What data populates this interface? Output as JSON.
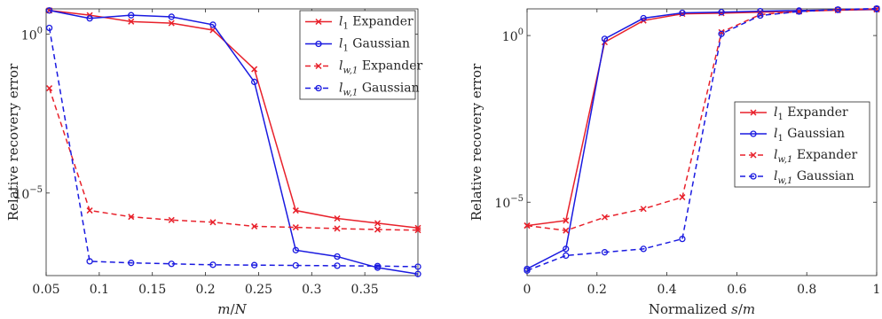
{
  "chart_data": [
    {
      "type": "line",
      "xlabel": "m/N",
      "ylabel": "Relative recovery error",
      "yscale": "log",
      "xlim": [
        0.05,
        0.4
      ],
      "ylim_log10": [
        -7.6,
        0.8
      ],
      "xticks": [
        0.05,
        0.1,
        0.15,
        0.2,
        0.25,
        0.3,
        0.35
      ],
      "xtick_labels": [
        "0.05",
        "0.1",
        "0.15",
        "0.2",
        "0.25",
        "0.3",
        "0.35"
      ],
      "yticks_log10": [
        0,
        -5
      ],
      "ytick_labels": [
        "10^0",
        "10^-5"
      ],
      "grid": false,
      "legend_position": "top-right",
      "series": [
        {
          "name": "l1 Expander",
          "color": "#e8212b",
          "dash": "solid",
          "marker": "x",
          "x": [
            0.053,
            0.091,
            0.13,
            0.168,
            0.207,
            0.246,
            0.285,
            0.324,
            0.362,
            0.4
          ],
          "y_log10": [
            0.75,
            0.6,
            0.4,
            0.35,
            0.13,
            -1.1,
            -5.55,
            -5.8,
            -5.95,
            -6.1
          ]
        },
        {
          "name": "l1 Gaussian",
          "color": "#1a1ae0",
          "dash": "solid",
          "marker": "o",
          "x": [
            0.053,
            0.091,
            0.13,
            0.168,
            0.207,
            0.246,
            0.285,
            0.324,
            0.362,
            0.4
          ],
          "y_log10": [
            0.75,
            0.5,
            0.6,
            0.55,
            0.3,
            -1.5,
            -6.8,
            -7.0,
            -7.35,
            -7.55
          ]
        },
        {
          "name": "lw,1 Expander",
          "color": "#e8212b",
          "dash": "dashed",
          "marker": "x",
          "x": [
            0.053,
            0.091,
            0.13,
            0.168,
            0.207,
            0.246,
            0.285,
            0.324,
            0.362,
            0.4
          ],
          "y_log10": [
            -1.7,
            -5.55,
            -5.75,
            -5.85,
            -5.92,
            -6.05,
            -6.08,
            -6.12,
            -6.15,
            -6.17
          ]
        },
        {
          "name": "lw,1 Gaussian",
          "color": "#1a1ae0",
          "dash": "dashed",
          "marker": "o",
          "x": [
            0.053,
            0.091,
            0.13,
            0.168,
            0.207,
            0.246,
            0.285,
            0.324,
            0.362,
            0.4
          ],
          "y_log10": [
            0.2,
            -7.15,
            -7.2,
            -7.23,
            -7.26,
            -7.27,
            -7.28,
            -7.29,
            -7.3,
            -7.32
          ]
        }
      ]
    },
    {
      "type": "line",
      "xlabel": "Normalized s/m",
      "ylabel": "Relative recovery error",
      "yscale": "log",
      "xlim": [
        0,
        1
      ],
      "ylim_log10": [
        -7.2,
        0.8
      ],
      "xticks": [
        0,
        0.2,
        0.4,
        0.6,
        0.8,
        1
      ],
      "xtick_labels": [
        "0",
        "0.2",
        "0.4",
        "0.6",
        "0.8",
        "1"
      ],
      "yticks_log10": [
        0,
        -5
      ],
      "ytick_labels": [
        "10^0",
        "10^-5"
      ],
      "grid": false,
      "legend_position": "center-right",
      "series": [
        {
          "name": "l1 Expander",
          "color": "#e8212b",
          "dash": "solid",
          "marker": "x",
          "x": [
            0,
            0.111,
            0.222,
            0.333,
            0.444,
            0.556,
            0.667,
            0.778,
            0.889,
            1
          ],
          "y_log10": [
            -5.7,
            -5.55,
            -0.2,
            0.45,
            0.65,
            0.67,
            0.7,
            0.73,
            0.76,
            0.78
          ]
        },
        {
          "name": "l1 Gaussian",
          "color": "#1a1ae0",
          "dash": "solid",
          "marker": "o",
          "x": [
            0,
            0.111,
            0.222,
            0.333,
            0.444,
            0.556,
            0.667,
            0.778,
            0.889,
            1
          ],
          "y_log10": [
            -7.0,
            -6.4,
            -0.1,
            0.52,
            0.68,
            0.7,
            0.73,
            0.75,
            0.77,
            0.79
          ]
        },
        {
          "name": "lw,1 Expander",
          "color": "#e8212b",
          "dash": "dashed",
          "marker": "x",
          "x": [
            0,
            0.111,
            0.222,
            0.333,
            0.444,
            0.556,
            0.667,
            0.778,
            0.889,
            1
          ],
          "y_log10": [
            -5.7,
            -5.85,
            -5.45,
            -5.2,
            -4.85,
            0.1,
            0.63,
            0.72,
            0.77,
            0.8
          ]
        },
        {
          "name": "lw,1 Gaussian",
          "color": "#1a1ae0",
          "dash": "dashed",
          "marker": "o",
          "x": [
            0,
            0.111,
            0.222,
            0.333,
            0.444,
            0.556,
            0.667,
            0.778,
            0.889,
            1
          ],
          "y_log10": [
            -7.05,
            -6.6,
            -6.5,
            -6.4,
            -6.1,
            0.05,
            0.6,
            0.72,
            0.78,
            0.81
          ]
        }
      ]
    }
  ]
}
